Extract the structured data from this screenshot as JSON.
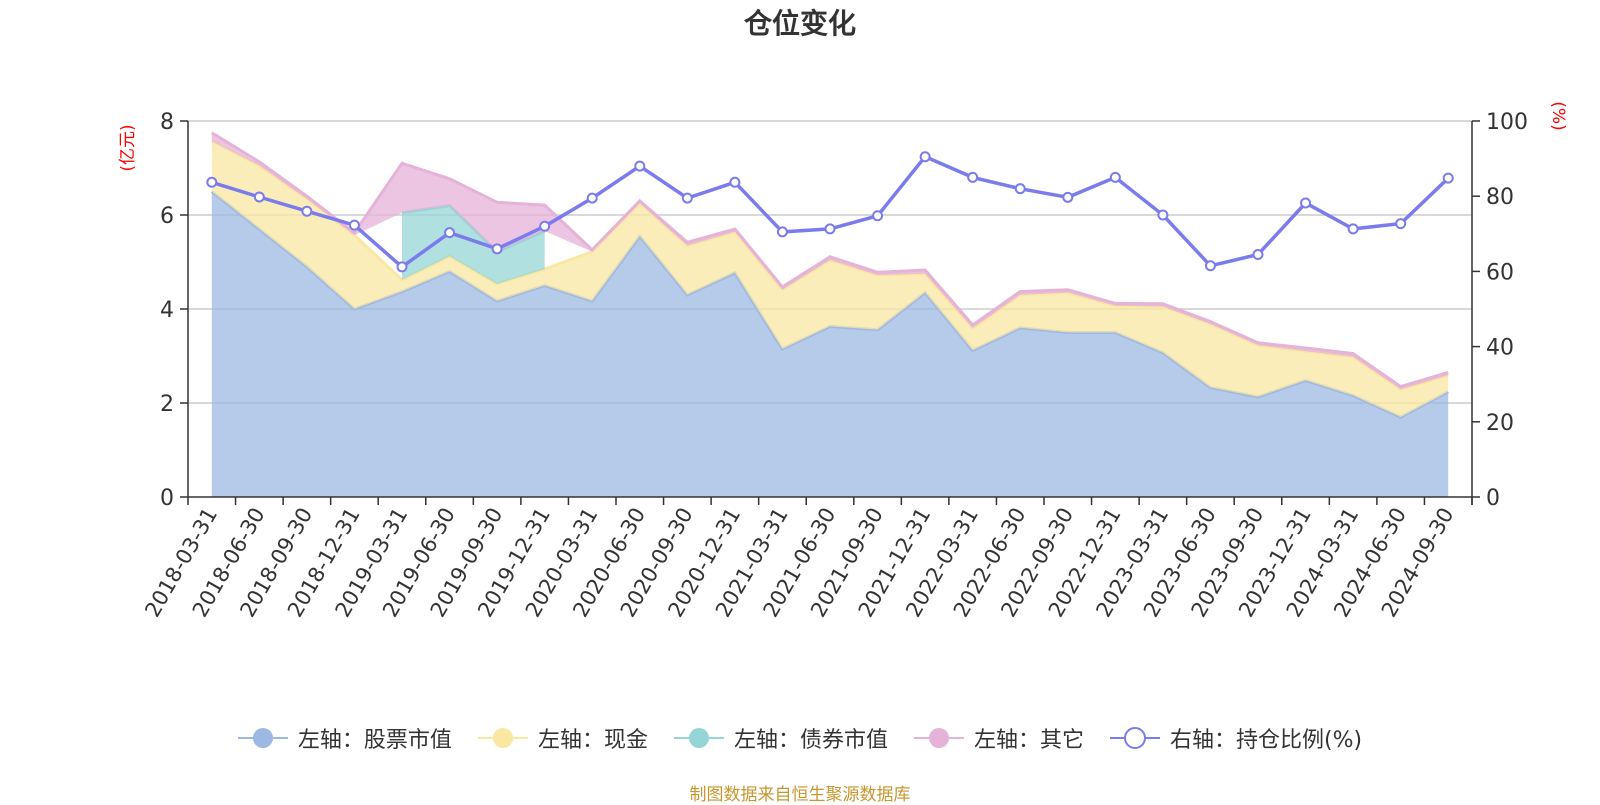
{
  "chart_data": {
    "type": "area",
    "title": "仓位变化",
    "left_unit": "(亿元)",
    "right_unit": "(%)",
    "left_ticks": [
      "0",
      "2",
      "4",
      "6",
      "8"
    ],
    "right_ticks": [
      "0",
      "20",
      "40",
      "60",
      "80",
      "100"
    ],
    "ylim_left": [
      0,
      8
    ],
    "ylim_right": [
      0,
      100
    ],
    "grid": true,
    "legend_position": "bottom",
    "categories": [
      "2018-03-31",
      "2018-06-30",
      "2018-09-30",
      "2018-12-31",
      "2019-03-31",
      "2019-06-30",
      "2019-09-30",
      "2019-12-31",
      "2020-03-31",
      "2020-06-30",
      "2020-09-30",
      "2020-12-31",
      "2021-03-31",
      "2021-06-30",
      "2021-09-30",
      "2021-12-31",
      "2022-03-31",
      "2022-06-30",
      "2022-09-30",
      "2022-12-31",
      "2023-03-31",
      "2023-06-30",
      "2023-09-30",
      "2023-12-31",
      "2024-03-31",
      "2024-06-30",
      "2024-09-30"
    ],
    "series": [
      {
        "name": "左轴：股票市值",
        "axis": "left",
        "stack": "total",
        "color": "#9db8e2",
        "values": [
          6.5,
          5.7,
          4.9,
          4.0,
          4.37,
          4.8,
          4.17,
          4.5,
          4.17,
          5.55,
          4.3,
          4.77,
          3.15,
          3.63,
          3.56,
          4.35,
          3.12,
          3.6,
          3.5,
          3.5,
          3.07,
          2.33,
          2.13,
          2.48,
          2.16,
          1.7,
          2.24
        ]
      },
      {
        "name": "左轴：现金",
        "axis": "left",
        "stack": "total",
        "color": "#f9e7a2",
        "values": [
          1.07,
          1.35,
          1.44,
          1.57,
          0.25,
          0.32,
          0.36,
          0.35,
          1.05,
          0.7,
          1.05,
          0.87,
          1.26,
          1.41,
          1.16,
          0.4,
          0.47,
          0.7,
          0.85,
          0.57,
          0.98,
          1.35,
          1.1,
          0.62,
          0.82,
          0.59,
          0.35
        ]
      },
      {
        "name": "左轴：债券市值",
        "axis": "left",
        "stack": "total",
        "color": "#96d5d6",
        "values": [
          0,
          0,
          0,
          0,
          1.43,
          1.08,
          0.69,
          0.81,
          0,
          0,
          0,
          0,
          0,
          0,
          0,
          0,
          0,
          0,
          0,
          0,
          0,
          0,
          0,
          0,
          0,
          0,
          0
        ]
      },
      {
        "name": "左轴：其它",
        "axis": "left",
        "stack": "total",
        "color": "#e5b2d8",
        "values": [
          0.18,
          0.08,
          0.06,
          0.05,
          1.05,
          0.57,
          1.05,
          0.55,
          0.04,
          0.05,
          0.07,
          0.06,
          0.06,
          0.07,
          0.06,
          0.08,
          0.07,
          0.07,
          0.06,
          0.05,
          0.06,
          0.05,
          0.05,
          0.07,
          0.07,
          0.06,
          0.06
        ]
      },
      {
        "name": "右轴：持仓比例(%)",
        "axis": "right",
        "type": "line",
        "color": "#7a7bec",
        "values": [
          83.7,
          79.8,
          76,
          72.3,
          61.2,
          70.3,
          66,
          72,
          79.5,
          88,
          79.5,
          83.7,
          70.5,
          71.3,
          74.8,
          90.5,
          85,
          82,
          79.7,
          85,
          75,
          61.5,
          64.5,
          78.2,
          71.3,
          72.7,
          84.8
        ]
      }
    ],
    "source_note": "制图数据来自恒生聚源数据库"
  }
}
